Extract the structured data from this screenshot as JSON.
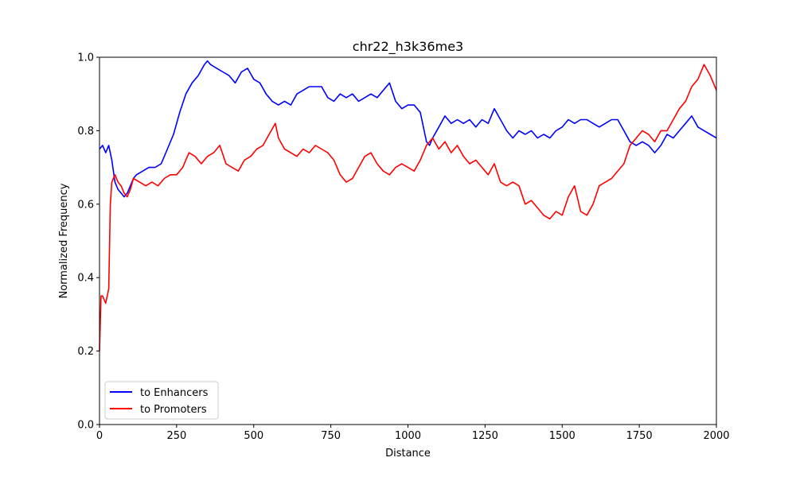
{
  "chart_data": {
    "type": "line",
    "title": "chr22_h3k36me3",
    "xlabel": "Distance",
    "ylabel": "Normalized Frequency",
    "xlim": [
      0,
      2000
    ],
    "ylim": [
      0,
      1
    ],
    "xticks": [
      "0",
      "250",
      "500",
      "750",
      "1000",
      "1250",
      "1500",
      "1750",
      "2000"
    ],
    "yticks": [
      "0.0",
      "0.2",
      "0.4",
      "0.6",
      "0.8",
      "1.0"
    ],
    "grid": false,
    "legend_position": "lower-left",
    "series": [
      {
        "name": "to Enhancers",
        "color": "#0000ff",
        "x": [
          0,
          10,
          20,
          30,
          40,
          50,
          60,
          70,
          80,
          90,
          100,
          110,
          120,
          140,
          160,
          180,
          200,
          220,
          240,
          260,
          280,
          300,
          320,
          340,
          350,
          360,
          380,
          400,
          420,
          440,
          460,
          480,
          500,
          520,
          540,
          560,
          580,
          600,
          620,
          640,
          660,
          680,
          700,
          720,
          740,
          760,
          780,
          800,
          820,
          840,
          860,
          880,
          900,
          920,
          940,
          960,
          980,
          1000,
          1020,
          1040,
          1060,
          1070,
          1080,
          1100,
          1120,
          1140,
          1160,
          1180,
          1200,
          1220,
          1240,
          1260,
          1280,
          1300,
          1320,
          1340,
          1360,
          1380,
          1400,
          1420,
          1440,
          1460,
          1480,
          1500,
          1520,
          1540,
          1560,
          1580,
          1600,
          1620,
          1640,
          1660,
          1680,
          1700,
          1720,
          1740,
          1760,
          1780,
          1800,
          1820,
          1840,
          1860,
          1880,
          1900,
          1920,
          1940,
          1960,
          1980,
          2000
        ],
        "values": [
          0.75,
          0.76,
          0.74,
          0.76,
          0.72,
          0.66,
          0.64,
          0.63,
          0.62,
          0.63,
          0.65,
          0.67,
          0.68,
          0.69,
          0.7,
          0.7,
          0.71,
          0.75,
          0.79,
          0.85,
          0.9,
          0.93,
          0.95,
          0.98,
          0.99,
          0.98,
          0.97,
          0.96,
          0.95,
          0.93,
          0.96,
          0.97,
          0.94,
          0.93,
          0.9,
          0.88,
          0.87,
          0.88,
          0.87,
          0.9,
          0.91,
          0.92,
          0.92,
          0.92,
          0.89,
          0.88,
          0.9,
          0.89,
          0.9,
          0.88,
          0.89,
          0.9,
          0.89,
          0.91,
          0.93,
          0.88,
          0.86,
          0.87,
          0.87,
          0.85,
          0.77,
          0.76,
          0.78,
          0.81,
          0.84,
          0.82,
          0.83,
          0.82,
          0.83,
          0.81,
          0.83,
          0.82,
          0.86,
          0.83,
          0.8,
          0.78,
          0.8,
          0.79,
          0.8,
          0.78,
          0.79,
          0.78,
          0.8,
          0.81,
          0.83,
          0.82,
          0.83,
          0.83,
          0.82,
          0.81,
          0.82,
          0.83,
          0.83,
          0.8,
          0.77,
          0.76,
          0.77,
          0.76,
          0.74,
          0.76,
          0.79,
          0.78,
          0.8,
          0.82,
          0.84,
          0.81,
          0.8,
          0.79,
          0.78
        ]
      },
      {
        "name": "to Promoters",
        "color": "#ff0000",
        "x": [
          0,
          5,
          10,
          20,
          30,
          35,
          40,
          50,
          60,
          70,
          80,
          90,
          100,
          110,
          130,
          150,
          170,
          190,
          210,
          230,
          250,
          270,
          290,
          310,
          330,
          350,
          370,
          390,
          410,
          430,
          450,
          470,
          490,
          510,
          530,
          550,
          570,
          580,
          600,
          620,
          640,
          660,
          680,
          700,
          720,
          740,
          760,
          780,
          800,
          820,
          840,
          860,
          880,
          900,
          920,
          940,
          960,
          980,
          1000,
          1020,
          1040,
          1060,
          1080,
          1100,
          1120,
          1140,
          1160,
          1180,
          1200,
          1220,
          1240,
          1260,
          1280,
          1300,
          1320,
          1340,
          1360,
          1380,
          1400,
          1420,
          1440,
          1460,
          1480,
          1500,
          1520,
          1540,
          1560,
          1580,
          1600,
          1620,
          1640,
          1660,
          1680,
          1700,
          1720,
          1740,
          1760,
          1780,
          1800,
          1820,
          1840,
          1860,
          1880,
          1900,
          1920,
          1940,
          1960,
          1980,
          2000
        ],
        "values": [
          0.2,
          0.35,
          0.35,
          0.33,
          0.37,
          0.6,
          0.66,
          0.68,
          0.66,
          0.65,
          0.63,
          0.62,
          0.64,
          0.67,
          0.66,
          0.65,
          0.66,
          0.65,
          0.67,
          0.68,
          0.68,
          0.7,
          0.74,
          0.73,
          0.71,
          0.73,
          0.74,
          0.76,
          0.71,
          0.7,
          0.69,
          0.72,
          0.73,
          0.75,
          0.76,
          0.79,
          0.82,
          0.78,
          0.75,
          0.74,
          0.73,
          0.75,
          0.74,
          0.76,
          0.75,
          0.74,
          0.72,
          0.68,
          0.66,
          0.67,
          0.7,
          0.73,
          0.74,
          0.71,
          0.69,
          0.68,
          0.7,
          0.71,
          0.7,
          0.69,
          0.72,
          0.76,
          0.78,
          0.75,
          0.77,
          0.74,
          0.76,
          0.73,
          0.71,
          0.72,
          0.7,
          0.68,
          0.71,
          0.66,
          0.65,
          0.66,
          0.65,
          0.6,
          0.61,
          0.59,
          0.57,
          0.56,
          0.58,
          0.57,
          0.62,
          0.65,
          0.58,
          0.57,
          0.6,
          0.65,
          0.66,
          0.67,
          0.69,
          0.71,
          0.76,
          0.78,
          0.8,
          0.79,
          0.77,
          0.8,
          0.8,
          0.83,
          0.86,
          0.88,
          0.92,
          0.94,
          0.98,
          0.95,
          0.91
        ]
      }
    ]
  }
}
